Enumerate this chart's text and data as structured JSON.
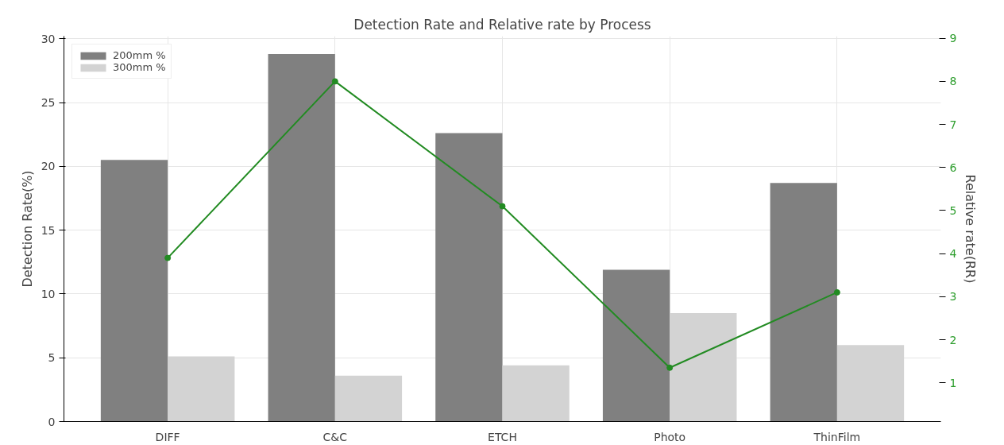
{
  "chart_data": {
    "type": "bar",
    "title": "Detection Rate and Relative rate by Process",
    "categories": [
      "DIFF",
      "C&C",
      "ETCH",
      "Photo",
      "ThinFilm"
    ],
    "series": [
      {
        "name": "200mm %",
        "color": "#808080",
        "values": [
          20.5,
          28.8,
          22.6,
          11.9,
          18.7
        ]
      },
      {
        "name": "300mm %",
        "color": "#d3d3d3",
        "values": [
          5.1,
          3.6,
          4.4,
          8.5,
          6.0
        ]
      },
      {
        "type": "line",
        "axis": "y2",
        "color": "#228b22",
        "values": [
          3.9,
          8.0,
          5.1,
          1.35,
          3.1
        ]
      }
    ],
    "ylabel": "Detection Rate(%)",
    "y2label": "Relative rate(RR)",
    "ylim": [
      0,
      30.2
    ],
    "yticks": [
      0,
      5,
      10,
      15,
      20,
      25,
      30
    ],
    "y2lim": [
      0.1,
      9.05
    ],
    "y2ticks": [
      1,
      2,
      3,
      4,
      5,
      6,
      7,
      8,
      9
    ],
    "grid": true,
    "legend": "top left",
    "marker": "circle"
  }
}
